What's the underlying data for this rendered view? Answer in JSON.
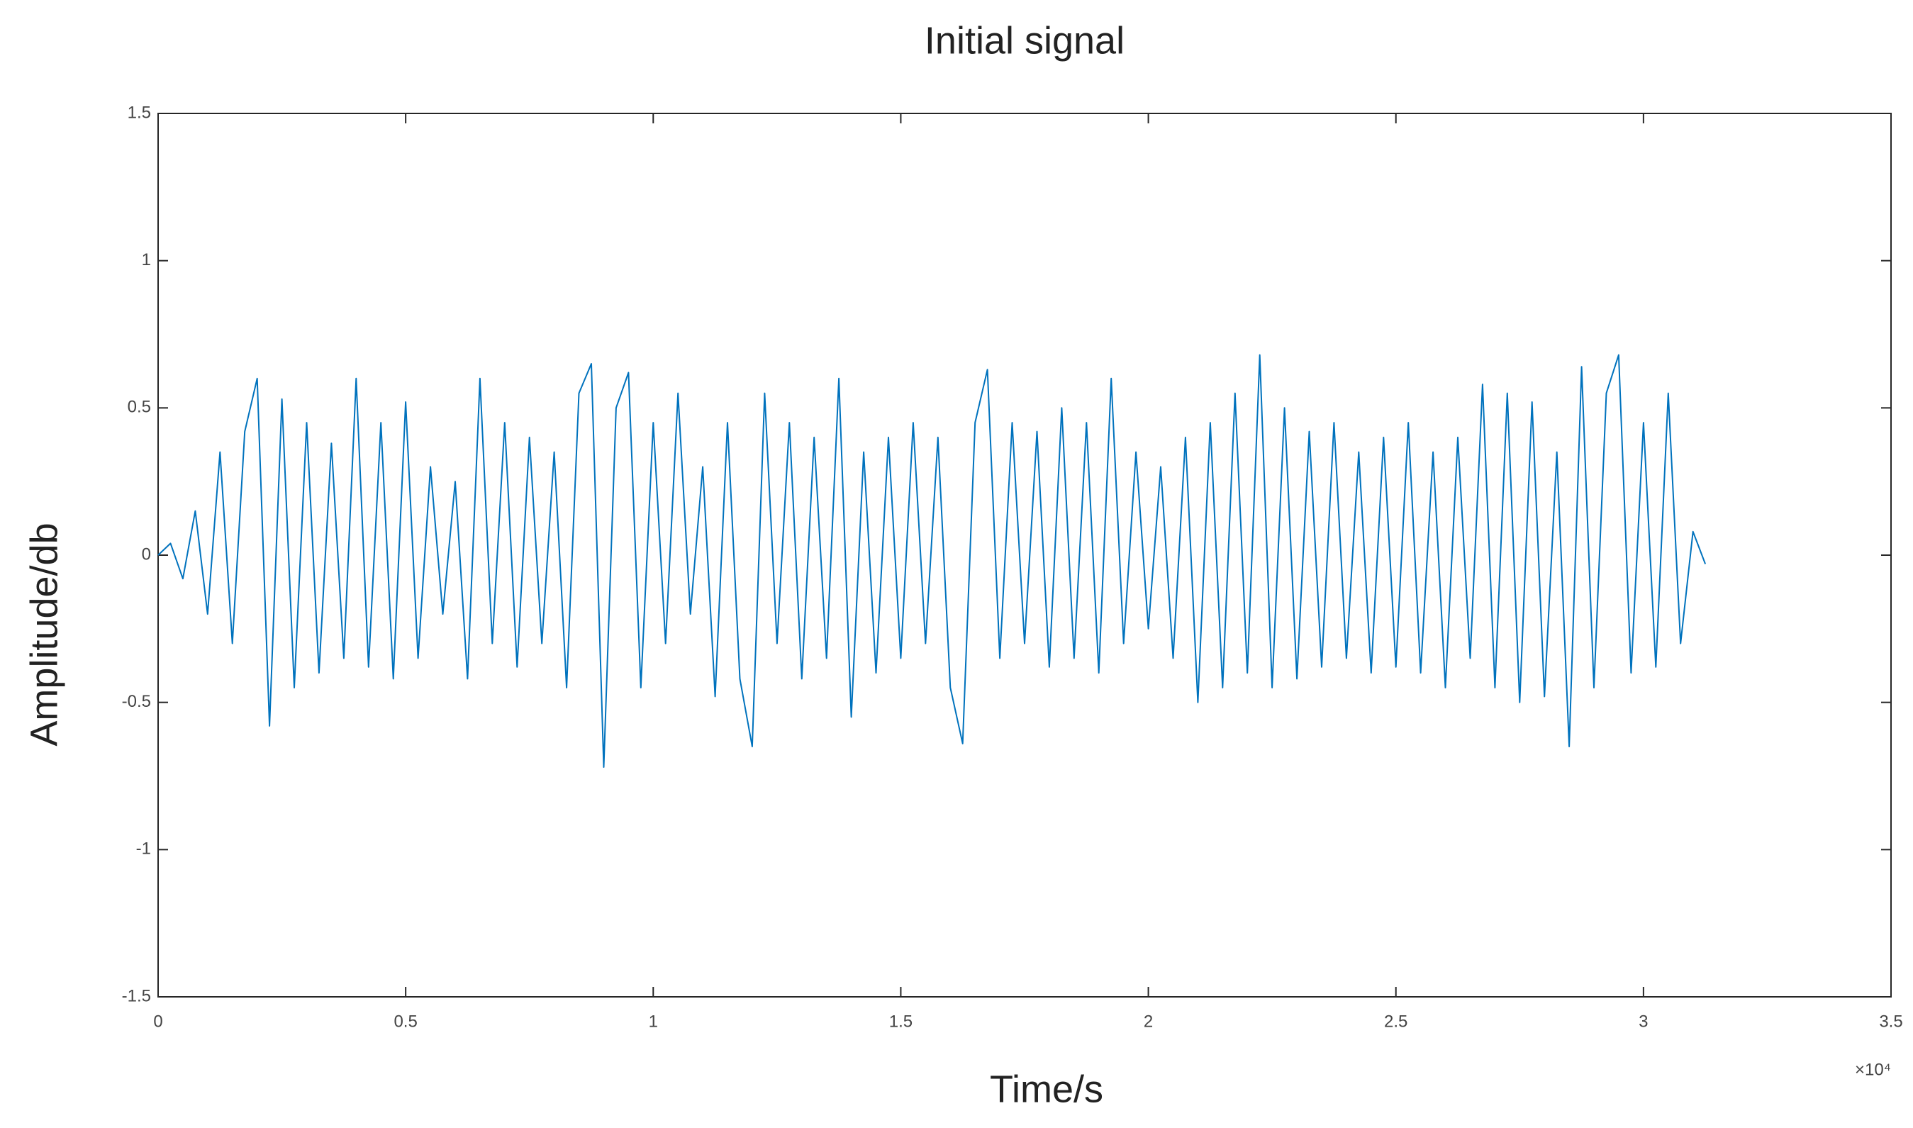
{
  "chart_data": {
    "type": "line",
    "title": "Initial signal",
    "x_label": "Time/s",
    "y_label": "Amplitude/db",
    "x_exponent_label": "×10⁴",
    "x": [
      0,
      0.025,
      0.05,
      0.075,
      0.1,
      0.125,
      0.15,
      0.175,
      0.2,
      0.225,
      0.25,
      0.275,
      0.3,
      0.325,
      0.35,
      0.375,
      0.4,
      0.425,
      0.45,
      0.475,
      0.5,
      0.525,
      0.55,
      0.575,
      0.6,
      0.625,
      0.65,
      0.675,
      0.7,
      0.725,
      0.75,
      0.775,
      0.8,
      0.825,
      0.85,
      0.875,
      0.9,
      0.925,
      0.95,
      0.975,
      1.0,
      1.025,
      1.05,
      1.075,
      1.1,
      1.125,
      1.15,
      1.175,
      1.2,
      1.225,
      1.25,
      1.275,
      1.3,
      1.325,
      1.35,
      1.375,
      1.4,
      1.425,
      1.45,
      1.475,
      1.5,
      1.525,
      1.55,
      1.575,
      1.6,
      1.625,
      1.65,
      1.675,
      1.7,
      1.725,
      1.75,
      1.775,
      1.8,
      1.825,
      1.85,
      1.875,
      1.9,
      1.925,
      1.95,
      1.975,
      2.0,
      2.025,
      2.05,
      2.075,
      2.1,
      2.125,
      2.15,
      2.175,
      2.2,
      2.225,
      2.25,
      2.275,
      2.3,
      2.325,
      2.35,
      2.375,
      2.4,
      2.425,
      2.45,
      2.475,
      2.5,
      2.525,
      2.55,
      2.575,
      2.6,
      2.625,
      2.65,
      2.675,
      2.7,
      2.725,
      2.75,
      2.775,
      2.8,
      2.825,
      2.85,
      2.875,
      2.9,
      2.925,
      2.95,
      2.975,
      3.0,
      3.025,
      3.05,
      3.075,
      3.1,
      3.125
    ],
    "series": [
      {
        "color": "#0072bd",
        "values": [
          0,
          0.04,
          -0.08,
          0.15,
          -0.2,
          0.35,
          -0.3,
          0.42,
          0.6,
          -0.58,
          0.53,
          -0.45,
          0.45,
          -0.4,
          0.38,
          -0.35,
          0.6,
          -0.38,
          0.45,
          -0.42,
          0.52,
          -0.35,
          0.3,
          -0.2,
          0.25,
          -0.42,
          0.6,
          -0.3,
          0.45,
          -0.38,
          0.4,
          -0.3,
          0.35,
          -0.45,
          0.55,
          0.65,
          -0.72,
          0.5,
          0.62,
          -0.45,
          0.45,
          -0.3,
          0.55,
          -0.2,
          0.3,
          -0.48,
          0.45,
          -0.42,
          -0.65,
          0.55,
          -0.3,
          0.45,
          -0.42,
          0.4,
          -0.35,
          0.6,
          -0.55,
          0.35,
          -0.4,
          0.4,
          -0.35,
          0.45,
          -0.3,
          0.4,
          -0.45,
          -0.64,
          0.45,
          0.63,
          -0.35,
          0.45,
          -0.3,
          0.42,
          -0.38,
          0.5,
          -0.35,
          0.45,
          -0.4,
          0.6,
          -0.3,
          0.35,
          -0.25,
          0.3,
          -0.35,
          0.4,
          -0.5,
          0.45,
          -0.45,
          0.55,
          -0.4,
          0.68,
          -0.45,
          0.5,
          -0.42,
          0.42,
          -0.38,
          0.45,
          -0.35,
          0.35,
          -0.4,
          0.4,
          -0.38,
          0.45,
          -0.4,
          0.35,
          -0.45,
          0.4,
          -0.35,
          0.58,
          -0.45,
          0.55,
          -0.5,
          0.52,
          -0.48,
          0.35,
          -0.65,
          0.64,
          -0.45,
          0.55,
          0.68,
          -0.4,
          0.45,
          -0.38,
          0.55,
          -0.3,
          0.08,
          -0.03
        ]
      }
    ],
    "xlim": [
      0,
      3.5
    ],
    "xticks": [
      0,
      0.5,
      1,
      1.5,
      2,
      2.5,
      3,
      3.5
    ],
    "ylim": [
      -1.5,
      1.5
    ],
    "yticks": [
      -1.5,
      -1,
      -0.5,
      0,
      0.5,
      1,
      1.5
    ],
    "grid": false
  }
}
